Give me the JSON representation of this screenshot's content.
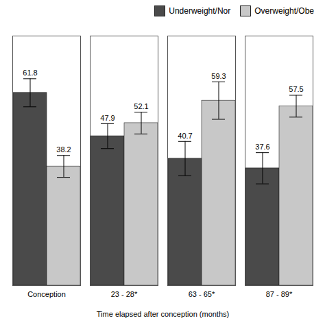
{
  "chart_data": {
    "type": "bar",
    "categories": [
      "Conception",
      "23 - 28*",
      "63 - 65*",
      "87 - 89*"
    ],
    "series": [
      {
        "name": "Underweight/Nor",
        "color": "#4a4a4a",
        "values": [
          61.8,
          47.9,
          40.7,
          37.6
        ],
        "errors_low": [
          4.5,
          4.0,
          5.5,
          5.0
        ],
        "errors_high": [
          4.5,
          4.0,
          5.5,
          5.0
        ]
      },
      {
        "name": "Overweight/Obe",
        "color": "#c8c8c8",
        "values": [
          38.2,
          52.1,
          59.3,
          57.5
        ],
        "errors_low": [
          3.5,
          3.5,
          6.0,
          3.5
        ],
        "errors_high": [
          3.5,
          3.5,
          6.0,
          3.5
        ]
      }
    ],
    "xlabel": "Time elapsed after conception (months)",
    "ylim": [
      0,
      80
    ],
    "grid": false,
    "legend": "upper right",
    "data_labels": true,
    "tick_labels": "x"
  }
}
